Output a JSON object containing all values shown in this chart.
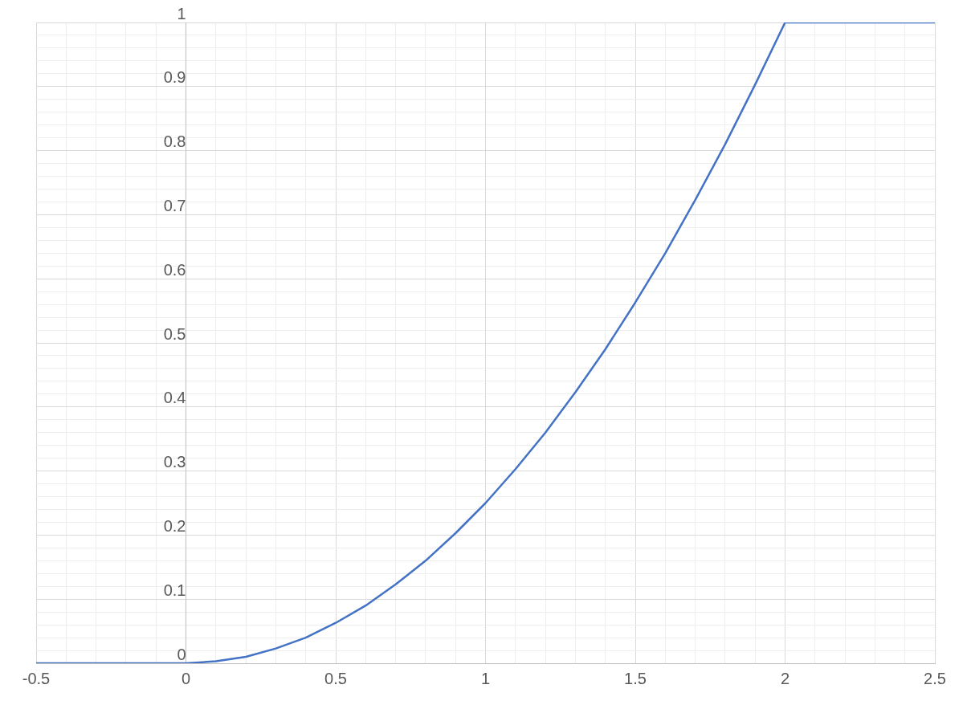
{
  "chart_data": {
    "type": "line",
    "x": [
      -0.5,
      0,
      0.1,
      0.2,
      0.3,
      0.4,
      0.5,
      0.6,
      0.7,
      0.8,
      0.9,
      1,
      1.1,
      1.2,
      1.3,
      1.4,
      1.5,
      1.6,
      1.7,
      1.8,
      1.9,
      2,
      2.5
    ],
    "series": [
      {
        "color": "#4472c4",
        "values": [
          0,
          0,
          0.003,
          0.01,
          0.023,
          0.04,
          0.063,
          0.09,
          0.123,
          0.16,
          0.203,
          0.25,
          0.303,
          0.36,
          0.423,
          0.49,
          0.563,
          0.64,
          0.723,
          0.81,
          0.903,
          1,
          1
        ]
      }
    ],
    "xlim": [
      -0.5,
      2.5
    ],
    "xticks": [
      {
        "value": -0.5,
        "label": "-0.5"
      },
      {
        "value": -0.4,
        "label": null
      },
      {
        "value": -0.3,
        "label": null
      },
      {
        "value": -0.2,
        "label": null
      },
      {
        "value": -0.1,
        "label": null
      },
      0,
      {
        "value": 0.1,
        "label": null
      },
      {
        "value": 0.2,
        "label": null
      },
      {
        "value": 0.3,
        "label": null
      },
      {
        "value": 0.4,
        "label": null
      },
      0.5,
      {
        "value": 0.6,
        "label": null
      },
      {
        "value": 0.7,
        "label": null
      },
      {
        "value": 0.8,
        "label": null
      },
      {
        "value": 0.9,
        "label": null
      },
      1,
      {
        "value": 1.1,
        "label": null
      },
      {
        "value": 1.2,
        "label": null
      },
      {
        "value": 1.3,
        "label": null
      },
      {
        "value": 1.4,
        "label": null
      },
      1.5,
      {
        "value": 1.6,
        "label": null
      },
      {
        "value": 1.7,
        "label": null
      },
      {
        "value": 1.8,
        "label": null
      },
      {
        "value": 1.9,
        "label": null
      },
      2,
      {
        "value": 2.1,
        "label": null
      },
      {
        "value": 2.2,
        "label": null
      },
      {
        "value": 2.3,
        "label": null
      },
      {
        "value": 2.4,
        "label": null
      },
      2.5
    ],
    "ylim": [
      0,
      1
    ],
    "yticks": [
      0,
      {
        "value": 0.02,
        "label": null
      },
      {
        "value": 0.04,
        "label": null
      },
      {
        "value": 0.06,
        "label": null
      },
      {
        "value": 0.08,
        "label": null
      },
      0.1,
      {
        "value": 0.12,
        "label": null
      },
      {
        "value": 0.14,
        "label": null
      },
      {
        "value": 0.16,
        "label": null
      },
      {
        "value": 0.18,
        "label": null
      },
      0.2,
      {
        "value": 0.22,
        "label": null
      },
      {
        "value": 0.24,
        "label": null
      },
      {
        "value": 0.26,
        "label": null
      },
      {
        "value": 0.28,
        "label": null
      },
      0.3,
      {
        "value": 0.32,
        "label": null
      },
      {
        "value": 0.34,
        "label": null
      },
      {
        "value": 0.36,
        "label": null
      },
      {
        "value": 0.38,
        "label": null
      },
      0.4,
      {
        "value": 0.42,
        "label": null
      },
      {
        "value": 0.44,
        "label": null
      },
      {
        "value": 0.46,
        "label": null
      },
      {
        "value": 0.48,
        "label": null
      },
      0.5,
      {
        "value": 0.52,
        "label": null
      },
      {
        "value": 0.54,
        "label": null
      },
      {
        "value": 0.56,
        "label": null
      },
      {
        "value": 0.58,
        "label": null
      },
      0.6,
      {
        "value": 0.62,
        "label": null
      },
      {
        "value": 0.64,
        "label": null
      },
      {
        "value": 0.66,
        "label": null
      },
      {
        "value": 0.68,
        "label": null
      },
      0.7,
      {
        "value": 0.72,
        "label": null
      },
      {
        "value": 0.74,
        "label": null
      },
      {
        "value": 0.76,
        "label": null
      },
      {
        "value": 0.78,
        "label": null
      },
      0.8,
      {
        "value": 0.82,
        "label": null
      },
      {
        "value": 0.84,
        "label": null
      },
      {
        "value": 0.86,
        "label": null
      },
      {
        "value": 0.88,
        "label": null
      },
      0.9,
      {
        "value": 0.92,
        "label": null
      },
      {
        "value": 0.94,
        "label": null
      },
      {
        "value": 0.96,
        "label": null
      },
      {
        "value": 0.98,
        "label": null
      },
      1
    ],
    "grid": true,
    "legend": false,
    "marker": "none",
    "line_style": "solid"
  }
}
